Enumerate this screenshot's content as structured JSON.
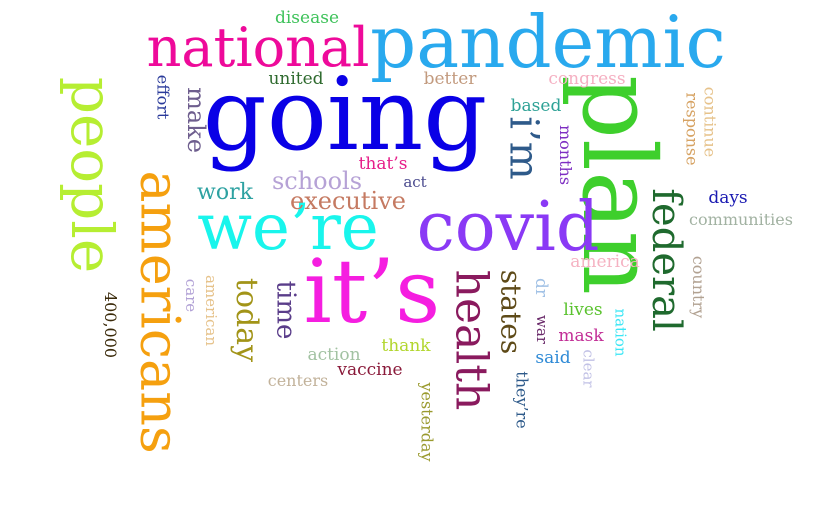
{
  "words": [
    {
      "text": "going",
      "color": "#0a00e6"
    },
    {
      "text": "pandemic",
      "color": "#29a9ee"
    },
    {
      "text": "plan",
      "color": "#3ecf2c"
    },
    {
      "text": "national",
      "color": "#ee0a9a"
    },
    {
      "text": "we’re",
      "color": "#19f5ec"
    },
    {
      "text": "covid",
      "color": "#8a39f5"
    },
    {
      "text": "it’s",
      "color": "#f51ee0"
    },
    {
      "text": "people",
      "color": "#b6ee32"
    },
    {
      "text": "americans",
      "color": "#f5a00f"
    },
    {
      "text": "health",
      "color": "#8a1a5e"
    },
    {
      "text": "i’m",
      "color": "#2e5a8a"
    },
    {
      "text": "federal",
      "color": "#1f6a2e"
    },
    {
      "text": "states",
      "color": "#5e4a18"
    },
    {
      "text": "today",
      "color": "#a29418"
    },
    {
      "text": "time",
      "color": "#5a3d8a"
    },
    {
      "text": "executive",
      "color": "#c57a62"
    },
    {
      "text": "schools",
      "color": "#b6a2d6"
    },
    {
      "text": "work",
      "color": "#2ea2a2"
    },
    {
      "text": "make",
      "color": "#6e5e8e"
    },
    {
      "text": "disease",
      "color": "#3ec25a"
    },
    {
      "text": "united",
      "color": "#2e6a2e"
    },
    {
      "text": "better",
      "color": "#c29a7e"
    },
    {
      "text": "congress",
      "color": "#f5b0c2"
    },
    {
      "text": "continue",
      "color": "#e6c28a"
    },
    {
      "text": "response",
      "color": "#d6a262"
    },
    {
      "text": "effort",
      "color": "#2a3a9a"
    },
    {
      "text": "based",
      "color": "#2ea296"
    },
    {
      "text": "months",
      "color": "#7e2ec2"
    },
    {
      "text": "that’s",
      "color": "#e61e8a"
    },
    {
      "text": "act",
      "color": "#4a4a8e"
    },
    {
      "text": "days",
      "color": "#1a1ab2"
    },
    {
      "text": "communities",
      "color": "#a2b2a2"
    },
    {
      "text": "country",
      "color": "#b2a292"
    },
    {
      "text": "care",
      "color": "#b2a2d6"
    },
    {
      "text": "american",
      "color": "#e6c28a"
    },
    {
      "text": "400,000",
      "color": "#3a2a0a"
    },
    {
      "text": "dr",
      "color": "#a2c2e6"
    },
    {
      "text": "war",
      "color": "#6a2a6a"
    },
    {
      "text": "america",
      "color": "#f5b2c2"
    },
    {
      "text": "lives",
      "color": "#5ac22e"
    },
    {
      "text": "nation",
      "color": "#3ae6f5"
    },
    {
      "text": "mask",
      "color": "#c22e96"
    },
    {
      "text": "said",
      "color": "#2e8ad6"
    },
    {
      "text": "clear",
      "color": "#c2c2e6"
    },
    {
      "text": "they’re",
      "color": "#2e5a8a"
    },
    {
      "text": "thank",
      "color": "#b2d62e"
    },
    {
      "text": "action",
      "color": "#a2c2a2"
    },
    {
      "text": "vaccine",
      "color": "#8a1a3a"
    },
    {
      "text": "centers",
      "color": "#c2b29a"
    },
    {
      "text": "yesterday",
      "color": "#9a9a2e"
    }
  ]
}
